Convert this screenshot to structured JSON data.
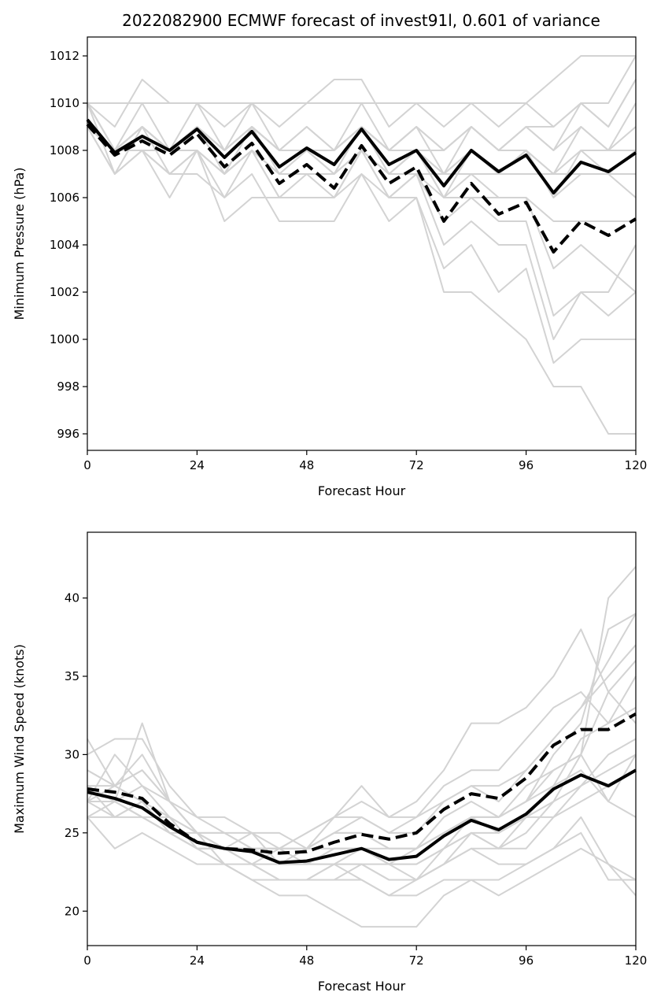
{
  "title": "2022082900 ECMWF forecast of invest91l, 0.601 of variance",
  "chart_data": [
    {
      "type": "line",
      "xlabel": "Forecast Hour",
      "ylabel": "Minimum Pressure (hPa)",
      "xlim": [
        0,
        120
      ],
      "ylim": [
        995.3,
        1012.8
      ],
      "xticks": [
        0,
        24,
        48,
        72,
        96,
        120
      ],
      "yticks": [
        996,
        998,
        1000,
        1002,
        1004,
        1006,
        1008,
        1010,
        1012
      ],
      "grid": false,
      "x": [
        0,
        6,
        12,
        18,
        24,
        30,
        36,
        42,
        48,
        54,
        60,
        66,
        72,
        78,
        84,
        90,
        96,
        102,
        108,
        114,
        120
      ],
      "series": [
        {
          "style": "solid",
          "values": [
            1009.3,
            1007.9,
            1008.6,
            1008.0,
            1008.9,
            1007.7,
            1008.8,
            1007.3,
            1008.1,
            1007.4,
            1008.9,
            1007.4,
            1008.0,
            1006.5,
            1008.0,
            1007.1,
            1007.8,
            1006.2,
            1007.5,
            1007.1,
            1007.9
          ]
        },
        {
          "style": "dashed",
          "values": [
            1009.1,
            1007.8,
            1008.4,
            1007.8,
            1008.7,
            1007.3,
            1008.3,
            1006.6,
            1007.4,
            1006.4,
            1008.2,
            1006.6,
            1007.3,
            1005.0,
            1006.6,
            1005.3,
            1005.8,
            1003.7,
            1005.0,
            1004.4,
            1005.1
          ]
        }
      ],
      "members": [
        [
          1010,
          1008,
          1009,
          1008,
          1009,
          1008,
          1009,
          1008,
          1008,
          1008,
          1009,
          1008,
          1009,
          1008,
          1009,
          1008,
          1009,
          1008,
          1009,
          1008,
          1008
        ],
        [
          1009,
          1008,
          1009,
          1008,
          1009,
          1007,
          1009,
          1007,
          1008,
          1007,
          1009,
          1007,
          1008,
          1006,
          1008,
          1007,
          1008,
          1006,
          1007,
          1007,
          1008
        ],
        [
          1010,
          1007,
          1009,
          1007,
          1008,
          1007,
          1008,
          1007,
          1007,
          1007,
          1008,
          1007,
          1007,
          1007,
          1007,
          1007,
          1007,
          1007,
          1007,
          1007,
          1007
        ],
        [
          1009,
          1008,
          1008,
          1008,
          1009,
          1008,
          1009,
          1008,
          1008,
          1008,
          1009,
          1008,
          1008,
          1008,
          1009,
          1008,
          1008,
          1007,
          1008,
          1008,
          1009
        ],
        [
          1010,
          1010,
          1010,
          1010,
          1010,
          1010,
          1010,
          1010,
          1010,
          1010,
          1010,
          1010,
          1010,
          1009,
          1010,
          1009,
          1010,
          1009,
          1010,
          1010,
          1012
        ],
        [
          1010,
          1009,
          1011,
          1010,
          1010,
          1009,
          1010,
          1009,
          1010,
          1011,
          1011,
          1009,
          1010,
          1010,
          1010,
          1010,
          1010,
          1011,
          1012,
          1012,
          1012
        ],
        [
          1009,
          1008,
          1009,
          1008,
          1010,
          1008,
          1010,
          1008,
          1009,
          1008,
          1010,
          1008,
          1009,
          1007,
          1009,
          1008,
          1009,
          1008,
          1010,
          1009,
          1011
        ],
        [
          1009,
          1007,
          1008,
          1006,
          1008,
          1005,
          1006,
          1006,
          1006,
          1006,
          1007,
          1005,
          1006,
          1002,
          1002,
          1001,
          1000,
          998,
          998,
          996,
          996
        ],
        [
          1009,
          1007,
          1008,
          1007,
          1007,
          1006,
          1007,
          1005,
          1005,
          1005,
          1007,
          1006,
          1006,
          1003,
          1004,
          1002,
          1003,
          999,
          1000,
          1000,
          1000
        ],
        [
          1009,
          1008,
          1008,
          1007,
          1008,
          1007,
          1008,
          1006,
          1007,
          1006,
          1008,
          1006,
          1007,
          1004,
          1005,
          1004,
          1004,
          1000,
          1002,
          1002,
          1004
        ],
        [
          1009,
          1008,
          1008,
          1007,
          1008,
          1006,
          1008,
          1006,
          1006,
          1006,
          1008,
          1006,
          1007,
          1005,
          1006,
          1005,
          1005,
          1001,
          1002,
          1001,
          1002
        ],
        [
          1009,
          1008,
          1009,
          1008,
          1008,
          1007,
          1008,
          1007,
          1007,
          1007,
          1008,
          1007,
          1007,
          1006,
          1006,
          1006,
          1006,
          1003,
          1004,
          1003,
          1002
        ],
        [
          1010,
          1008,
          1009,
          1008,
          1009,
          1008,
          1009,
          1008,
          1008,
          1008,
          1009,
          1008,
          1008,
          1006,
          1007,
          1006,
          1006,
          1005,
          1005,
          1005,
          1005
        ],
        [
          1009,
          1008,
          1009,
          1008,
          1009,
          1008,
          1009,
          1008,
          1008,
          1008,
          1009,
          1008,
          1008,
          1007,
          1008,
          1007,
          1008,
          1006,
          1008,
          1007,
          1006
        ],
        [
          1009,
          1008,
          1009,
          1008,
          1009,
          1007,
          1009,
          1008,
          1008,
          1007,
          1009,
          1007,
          1008,
          1007,
          1008,
          1007,
          1008,
          1007,
          1009,
          1008,
          1010
        ],
        [
          1010,
          1008,
          1010,
          1008,
          1009,
          1008,
          1009,
          1008,
          1009,
          1008,
          1009,
          1008,
          1009,
          1008,
          1009,
          1008,
          1009,
          1009,
          1010,
          1009,
          1011
        ]
      ]
    },
    {
      "type": "line",
      "xlabel": "Forecast Hour",
      "ylabel": "Maximum Wind Speed (knots)",
      "xlim": [
        0,
        120
      ],
      "ylim": [
        17.8,
        44.2
      ],
      "xticks": [
        0,
        24,
        48,
        72,
        96,
        120
      ],
      "yticks": [
        20,
        25,
        30,
        35,
        40
      ],
      "grid": false,
      "x": [
        0,
        6,
        12,
        18,
        24,
        30,
        36,
        42,
        48,
        54,
        60,
        66,
        72,
        78,
        84,
        90,
        96,
        102,
        108,
        114,
        120
      ],
      "series": [
        {
          "style": "solid",
          "values": [
            27.6,
            27.2,
            26.6,
            25.4,
            24.4,
            24.0,
            23.8,
            23.1,
            23.2,
            23.6,
            24.0,
            23.3,
            23.5,
            24.8,
            25.8,
            25.2,
            26.2,
            27.8,
            28.7,
            28.0,
            29.0
          ]
        },
        {
          "style": "dashed",
          "values": [
            27.8,
            27.6,
            27.2,
            25.6,
            24.4,
            24.0,
            23.9,
            23.7,
            23.8,
            24.4,
            24.9,
            24.6,
            25.0,
            26.5,
            27.5,
            27.2,
            28.5,
            30.6,
            31.6,
            31.6,
            32.6
          ]
        }
      ],
      "members": [
        [
          28,
          28,
          29,
          27,
          26,
          25,
          24,
          24,
          24,
          25,
          25,
          24,
          24,
          25,
          26,
          26,
          27,
          30,
          32,
          38,
          39
        ],
        [
          27,
          26,
          27,
          25,
          24,
          24,
          23,
          23,
          23,
          23,
          24,
          23,
          23,
          24,
          26,
          26,
          27,
          29,
          30,
          34,
          36
        ],
        [
          28,
          27,
          26,
          26,
          25,
          25,
          24,
          24,
          23,
          23,
          23,
          23,
          22,
          23,
          24,
          23,
          23,
          24,
          25,
          22,
          22
        ],
        [
          31,
          28,
          29,
          27,
          25,
          24,
          24,
          24,
          25,
          26,
          28,
          26,
          27,
          29,
          32,
          32,
          33,
          35,
          38,
          34,
          32
        ],
        [
          26,
          27,
          28,
          26,
          24,
          24,
          25,
          23,
          24,
          24,
          24,
          23,
          23,
          24,
          25,
          24,
          25,
          27,
          30,
          40,
          42
        ],
        [
          27,
          28,
          30,
          27,
          25,
          23,
          23,
          22,
          22,
          22,
          22,
          21,
          22,
          23,
          24,
          24,
          24,
          26,
          28,
          30,
          31
        ],
        [
          28,
          26,
          27,
          25,
          24,
          24,
          23,
          24,
          24,
          25,
          26,
          25,
          26,
          27,
          28,
          27,
          29,
          31,
          33,
          35,
          37
        ],
        [
          29,
          28,
          27,
          26,
          24,
          23,
          22,
          22,
          22,
          23,
          22,
          21,
          21,
          22,
          22,
          22,
          23,
          24,
          26,
          23,
          21
        ],
        [
          27,
          30,
          28,
          27,
          25,
          24,
          24,
          23,
          23,
          24,
          24,
          23,
          24,
          25,
          26,
          25,
          26,
          28,
          31,
          32,
          33
        ],
        [
          28,
          27,
          32,
          27,
          25,
          24,
          23,
          22,
          22,
          23,
          23,
          22,
          22,
          23,
          25,
          24,
          26,
          27,
          28,
          29,
          30
        ],
        [
          26,
          24,
          25,
          24,
          23,
          23,
          22,
          22,
          22,
          22,
          23,
          22,
          22,
          24,
          25,
          25,
          26,
          26,
          27,
          28,
          29
        ],
        [
          30,
          31,
          31,
          28,
          26,
          26,
          25,
          25,
          24,
          26,
          27,
          26,
          26,
          28,
          29,
          29,
          31,
          33,
          34,
          32,
          35
        ],
        [
          27,
          27,
          26,
          25,
          25,
          24,
          24,
          23,
          24,
          25,
          25,
          24,
          24,
          26,
          27,
          26,
          28,
          29,
          30,
          27,
          30
        ],
        [
          28,
          27,
          26,
          25,
          24,
          23,
          22,
          21,
          21,
          20,
          19,
          19,
          19,
          21,
          22,
          21,
          22,
          23,
          24,
          23,
          22
        ],
        [
          29,
          28,
          27,
          26,
          25,
          25,
          25,
          24,
          25,
          26,
          26,
          25,
          25,
          27,
          28,
          28,
          29,
          31,
          33,
          36,
          39
        ],
        [
          26,
          26,
          26,
          25,
          24,
          24,
          24,
          23,
          23,
          24,
          24,
          24,
          24,
          25,
          26,
          26,
          27,
          28,
          29,
          27,
          26
        ]
      ]
    }
  ],
  "colors": {
    "member": "#d3d3d3",
    "mean": "#000000",
    "background": "#ffffff"
  }
}
